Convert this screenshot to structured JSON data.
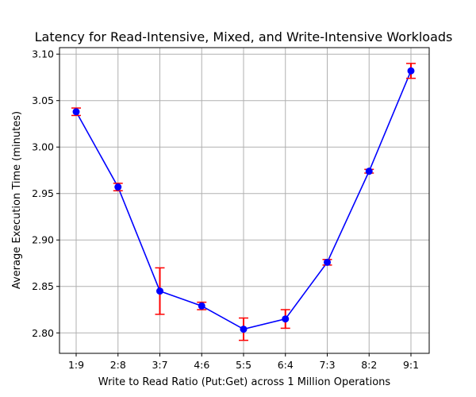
{
  "chart_data": {
    "type": "line",
    "title": "Latency for Read-Intensive, Mixed, and Write-Intensive Workloads",
    "xlabel": "Write to Read Ratio (Put:Get) across 1 Million Operations",
    "ylabel": "Average Execution Time (minutes)",
    "categories": [
      "1:9",
      "2:8",
      "3:7",
      "4:6",
      "5:5",
      "6:4",
      "7:3",
      "8:2",
      "9:1"
    ],
    "series": [
      {
        "values": [
          3.038,
          2.957,
          2.845,
          2.829,
          2.804,
          2.815,
          2.876,
          2.974,
          3.082
        ],
        "error": [
          0.004,
          0.004,
          0.025,
          0.004,
          0.012,
          0.01,
          0.003,
          0.002,
          0.008
        ]
      }
    ],
    "ylim": [
      2.778,
      3.107
    ],
    "yticks": [
      "2.80",
      "2.85",
      "2.90",
      "2.95",
      "3.00",
      "3.05",
      "3.10"
    ],
    "grid": true,
    "colors": {
      "line": "#0000ff",
      "marker": "#0000ff",
      "error": "#ff0000",
      "grid": "#b0b0b0"
    }
  }
}
